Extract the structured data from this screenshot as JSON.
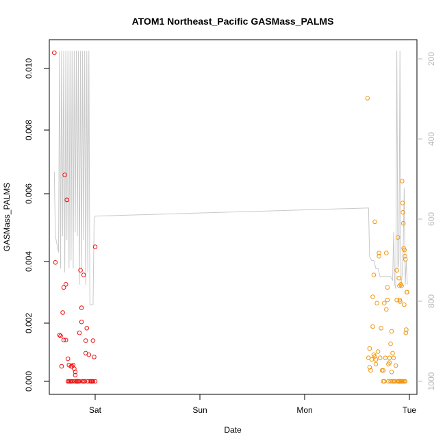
{
  "chart_data": {
    "type": "scatter",
    "title": "ATOM1 Northeast_Pacific GASMass_PALMS",
    "xlabel": "Date",
    "ylabel": "GASMass_PALMS",
    "x_ticks": [
      "Sat",
      "Sun",
      "Mon",
      "Tue"
    ],
    "ylim": [
      -0.0003,
      0.0109
    ],
    "y_ticks": [
      "0.000",
      "0.002",
      "0.004",
      "0.006",
      "0.008",
      "0.010"
    ],
    "y2_ticks": [
      "200",
      "400",
      "600",
      "800",
      "1000"
    ],
    "y2lim_reversed": [
      1020,
      175
    ],
    "grid": false,
    "colors": {
      "series1": "#ee1111",
      "series2": "#f2960f",
      "pressure_line": "#c8c8c8",
      "right_axis": "#b8b8b8"
    },
    "series": [
      {
        "values_x_days": [
          -0.39,
          -0.38,
          -0.34,
          -0.33,
          -0.32,
          -0.31,
          -0.3,
          -0.3,
          -0.29,
          -0.28,
          -0.28,
          -0.27,
          -0.27,
          -0.26,
          -0.26,
          -0.25,
          -0.25,
          -0.24,
          -0.23,
          -0.23,
          -0.22,
          -0.22,
          -0.21,
          -0.2,
          -0.2,
          -0.19,
          -0.19,
          -0.18,
          -0.18,
          -0.17,
          -0.17,
          -0.16,
          -0.15,
          -0.15,
          -0.14,
          -0.13,
          -0.13,
          -0.12,
          -0.11,
          -0.11,
          -0.1,
          -0.09,
          -0.09,
          -0.08,
          -0.07,
          -0.06,
          -0.05,
          -0.04,
          -0.03,
          -0.03,
          -0.02,
          -0.02,
          -0.01,
          0.0,
          0.0
        ],
        "values_y": [
          0.0105,
          0.0038,
          0.00148,
          0.00145,
          0.00048,
          0.0022,
          0.003,
          0.00132,
          0.0066,
          0.00132,
          0.0031,
          0.0058,
          0.0058,
          0.00072,
          0.0,
          0.00052,
          0.0,
          0.0,
          0.00048,
          0.0,
          0.0,
          0.00048,
          0.00052,
          0.0,
          0.0004,
          0.0003,
          0.0002,
          0.0,
          0.0,
          0.0,
          0.0,
          0.0,
          0.0,
          0.00155,
          0.00355,
          0.00235,
          0.0019,
          0.0,
          0.0,
          0.0034,
          0.0,
          0.0009,
          0.0013,
          0.0017,
          0.0,
          0.00085,
          0.0,
          0.0,
          0.0,
          0.0,
          0.0,
          0.0013,
          0.00078,
          0.0043,
          0.0
        ]
      },
      {
        "values_x_days": [
          2.6,
          2.61,
          2.62,
          2.62,
          2.63,
          2.64,
          2.65,
          2.65,
          2.66,
          2.66,
          2.67,
          2.67,
          2.68,
          2.68,
          2.69,
          2.7,
          2.71,
          2.71,
          2.72,
          2.73,
          2.74,
          2.75,
          2.75,
          2.76,
          2.76,
          2.77,
          2.78,
          2.78,
          2.79,
          2.79,
          2.8,
          2.8,
          2.81,
          2.81,
          2.82,
          2.82,
          2.83,
          2.83,
          2.84,
          2.84,
          2.85,
          2.85,
          2.86,
          2.86,
          2.87,
          2.88,
          2.88,
          2.89,
          2.89,
          2.9,
          2.9,
          2.91,
          2.91,
          2.92,
          2.92,
          2.93,
          2.93,
          2.94,
          2.95,
          2.96
        ],
        "values_y": [
          0.00905,
          0.00075,
          0.00105,
          0.00045,
          0.00035,
          0.0007,
          0.0027,
          0.00175,
          0.00085,
          0.0034,
          0.0051,
          0.0008,
          0.0007,
          0.00055,
          0.0025,
          0.00095,
          0.0041,
          0.004,
          0.00075,
          0.0017,
          0.00035,
          0.00035,
          0.0,
          0.0,
          0.0025,
          0.00075,
          0.0023,
          0.0041,
          0.0026,
          0.003,
          0.0,
          0.00055,
          0.00075,
          0.0006,
          0.0012,
          0.0,
          0.0016,
          0.0003,
          0.0009,
          0.0,
          0.00075,
          0.0,
          0.0,
          0.0,
          0.0005,
          0.0026,
          0.00355,
          0.0,
          0.0,
          0.0,
          0.0,
          0.0,
          0.0,
          0.0,
          0.0,
          0.0,
          0.0,
          0.0,
          0.0,
          0.0
        ],
        "values_y_extra": [
          0.0046,
          0.0033,
          0.00305,
          0.0026,
          0.00255,
          0.0031,
          0.00305,
          0.0064,
          0.0057,
          0.0054,
          0.00505,
          0.00425,
          0.00245,
          0.0042,
          0.004,
          0.0039,
          0.00155,
          0.00165,
          0.00285,
          0.00285
        ],
        "values_x_extra": [
          2.89,
          2.9,
          2.905,
          2.908,
          2.912,
          2.918,
          2.925,
          2.93,
          2.935,
          2.938,
          2.942,
          2.945,
          2.95,
          2.952,
          2.958,
          2.962,
          2.966,
          2.97,
          2.975,
          2.978
        ]
      }
    ],
    "pressure_line": {
      "x_days": [
        -0.39,
        -0.38,
        -0.35,
        -0.34,
        -0.33,
        -0.32,
        -0.31,
        -0.3,
        -0.29,
        -0.28,
        -0.27,
        -0.26,
        -0.25,
        -0.24,
        -0.23,
        -0.22,
        -0.21,
        -0.2,
        -0.19,
        -0.18,
        -0.17,
        -0.16,
        -0.15,
        -0.14,
        -0.13,
        -0.12,
        -0.11,
        -0.1,
        -0.09,
        -0.08,
        -0.07,
        -0.06,
        -0.05,
        -0.04,
        -0.03,
        -0.02,
        -0.01,
        0.0,
        0.01,
        2.61,
        2.62,
        2.64,
        2.66,
        2.68,
        2.7,
        2.72,
        2.74,
        2.76,
        2.78,
        2.8,
        2.82,
        2.84,
        2.85,
        2.86,
        2.87,
        2.88,
        2.89,
        2.9,
        2.91,
        2.92,
        2.93,
        2.94,
        2.95,
        2.96,
        2.97,
        2.98
      ],
      "y_pressure": [
        480,
        640,
        680,
        180,
        720,
        180,
        640,
        180,
        730,
        180,
        650,
        180,
        720,
        180,
        700,
        180,
        720,
        180,
        630,
        180,
        640,
        180,
        760,
        180,
        720,
        180,
        650,
        180,
        760,
        180,
        730,
        180,
        810,
        810,
        810,
        810,
        600,
        590,
        590,
        570,
        690,
        700,
        700,
        720,
        720,
        740,
        740,
        740,
        740,
        740,
        740,
        750,
        630,
        760,
        770,
        180,
        720,
        700,
        180,
        760,
        740,
        680,
        520,
        760,
        700,
        760
      ]
    }
  }
}
